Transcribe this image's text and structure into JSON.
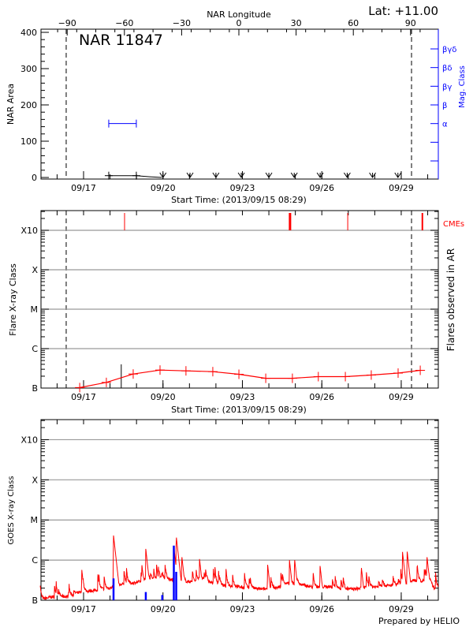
{
  "header": {
    "longitude_axis_label": "NAR Longitude",
    "latitude": "Lat: +11.00",
    "credit": "Prepared by HELIO"
  },
  "colors": {
    "flare": "#ff0000",
    "mag_class": "#0000ff",
    "area": "#000000",
    "grid": "#999999",
    "goes_events": "#0000ff"
  },
  "chart_data": [
    {
      "type": "line",
      "title": "NAR 11847",
      "xlabel": "Start Time: (2013/09/15 08:29)",
      "ylabel": "NAR Area",
      "y2label": "Mag. Class",
      "xlim": [
        "09/15 08:29",
        "09/30 09:40"
      ],
      "xticks": [
        "09/17",
        "09/20",
        "09/23",
        "09/26",
        "09/29"
      ],
      "ylim": [
        0,
        400
      ],
      "yticks": [
        0,
        100,
        200,
        300,
        400
      ],
      "top_axis": {
        "label": "NAR Longitude",
        "ticks": [
          -90,
          -60,
          -30,
          0,
          30,
          60,
          90
        ]
      },
      "limb_crossings": [
        "09/16 08:15",
        "09/29 09:20"
      ],
      "area_series": [
        {
          "t": "09/17 22:50",
          "area": 5
        },
        {
          "t": "09/18 23:50",
          "area": 5
        },
        {
          "t": "09/19 12:00",
          "area": 2
        },
        {
          "t": "09/19 23:00",
          "area": 0
        }
      ],
      "area_upper_limits": [
        "09/20 00:00",
        "09/21 00:30",
        "09/22 00:00",
        "09/22 23:00",
        "09/24 00:00",
        "09/24 23:00",
        "09/25 22:30",
        "09/26 23:00",
        "09/27 22:00",
        "09/28 21:00"
      ],
      "mag_class_levels": [
        "βγδ",
        "βδ",
        "βγ",
        "β",
        "α",
        "",
        ""
      ],
      "mag_class_series": [
        {
          "t": "09/17 22:50",
          "class": "α"
        },
        {
          "t": "09/18 23:50",
          "class": "α"
        }
      ]
    },
    {
      "type": "line",
      "xlabel": "Start Time: (2013/09/15 08:29)",
      "ylabel": "Flare X-ray Class",
      "y2label": "Flares observed in AR",
      "yscale": "log",
      "ylim": [
        1e-07,
        0.00316
      ],
      "yticks": [
        {
          "v": 1e-07,
          "label": "B"
        },
        {
          "v": 1e-06,
          "label": "C"
        },
        {
          "v": 1e-05,
          "label": "M"
        },
        {
          "v": 0.0001,
          "label": "X"
        },
        {
          "v": 0.001,
          "label": "X10"
        }
      ],
      "xticks": [
        "09/17",
        "09/20",
        "09/23",
        "09/26",
        "09/29"
      ],
      "limb_crossings": [
        "09/16 08:15",
        "09/29 09:20"
      ],
      "cme_label": "CMEs",
      "cmes": [
        {
          "t": "09/18 13:10",
          "width": 1
        },
        {
          "t": "09/24 19:10",
          "width": 3
        },
        {
          "t": "09/26 23:30",
          "width": 1
        },
        {
          "t": "09/29 19:10",
          "width": 2
        }
      ],
      "flare_event": {
        "t": "09/18 10:10",
        "flux": 4e-07
      },
      "series": [
        {
          "t": "09/16 20:30",
          "flux": 1.03e-07
        },
        {
          "t": "09/17 20:40",
          "flux": 1.39e-07
        },
        {
          "t": "09/18 21:00",
          "flux": 2.27e-07
        },
        {
          "t": "09/19 21:20",
          "flux": 2.86e-07
        },
        {
          "t": "09/20 20:50",
          "flux": 2.73e-07
        },
        {
          "t": "09/21 21:10",
          "flux": 2.61e-07
        },
        {
          "t": "09/22 20:50",
          "flux": 2.24e-07
        },
        {
          "t": "09/23 21:10",
          "flux": 1.77e-07
        },
        {
          "t": "09/24 21:20",
          "flux": 1.77e-07
        },
        {
          "t": "09/25 20:50",
          "flux": 1.95e-07
        },
        {
          "t": "09/26 21:20",
          "flux": 1.95e-07
        },
        {
          "t": "09/27 20:50",
          "flux": 2.14e-07
        },
        {
          "t": "09/28 21:10",
          "flux": 2.4e-07
        },
        {
          "t": "09/29 17:15",
          "flux": 2.82e-07
        }
      ]
    },
    {
      "type": "line",
      "ylabel": "GOES X-ray Class",
      "yscale": "log",
      "ylim": [
        1e-07,
        0.00316
      ],
      "yticks": [
        {
          "v": 1e-07,
          "label": "B"
        },
        {
          "v": 1e-06,
          "label": "C"
        },
        {
          "v": 1e-05,
          "label": "M"
        },
        {
          "v": 0.0001,
          "label": "X"
        },
        {
          "v": 0.001,
          "label": "X10"
        }
      ],
      "xticks": [
        "09/17",
        "09/20",
        "09/23",
        "09/26",
        "09/29"
      ],
      "baseline": [
        [
          "09/15 08:40",
          1e-07
        ],
        [
          "09/15 18:00",
          1.2e-07
        ],
        [
          "09/16 06:00",
          1.25e-07
        ],
        [
          "09/16 12:00",
          1.2e-07
        ],
        [
          "09/16 18:00",
          1.5e-07
        ],
        [
          "09/17 06:00",
          1.7e-07
        ],
        [
          "09/17 18:00",
          1.9e-07
        ],
        [
          "09/18 00:00",
          2e-07
        ],
        [
          "09/18 06:00",
          2.4e-07
        ],
        [
          "09/18 18:00",
          2.6e-07
        ],
        [
          "09/19 06:00",
          3e-07
        ],
        [
          "09/19 18:00",
          3.5e-07
        ],
        [
          "09/20 06:00",
          3.3e-07
        ],
        [
          "09/20 18:00",
          2.8e-07
        ],
        [
          "09/21 06:00",
          3e-07
        ],
        [
          "09/21 12:00",
          3.6e-07
        ],
        [
          "09/21 18:00",
          2.8e-07
        ],
        [
          "09/22 06:00",
          2.3e-07
        ],
        [
          "09/22 18:00",
          2.2e-07
        ],
        [
          "09/23 06:00",
          2e-07
        ],
        [
          "09/23 18:00",
          1.9e-07
        ],
        [
          "09/24 06:00",
          2e-07
        ],
        [
          "09/24 18:00",
          2.6e-07
        ],
        [
          "09/25 06:00",
          2.4e-07
        ],
        [
          "09/25 18:00",
          2.1e-07
        ],
        [
          "09/26 06:00",
          2.2e-07
        ],
        [
          "09/26 18:00",
          1.9e-07
        ],
        [
          "09/27 06:00",
          1.9e-07
        ],
        [
          "09/27 18:00",
          2.1e-07
        ],
        [
          "09/28 06:00",
          2.2e-07
        ],
        [
          "09/28 18:00",
          2.4e-07
        ],
        [
          "09/29 06:00",
          2.6e-07
        ],
        [
          "09/29 12:00",
          3.2e-07
        ],
        [
          "09/29 18:00",
          2.8e-07
        ],
        [
          "09/30 00:00",
          3.5e-07
        ],
        [
          "09/30 06:00",
          2e-07
        ],
        [
          "09/30 09:40",
          1.9e-07
        ]
      ],
      "peaks": [
        [
          "09/16 22:20",
          6e-07
        ],
        [
          "09/18 03:10",
          4.1e-06
        ],
        [
          "09/19 08:25",
          1.9e-06
        ],
        [
          "09/20 09:50",
          2.2e-06
        ],
        [
          "09/20 12:00",
          4e-06
        ],
        [
          "09/20 17:00",
          1.3e-06
        ],
        [
          "09/21 09:10",
          1.06e-06
        ],
        [
          "09/23 22:50",
          8e-07
        ],
        [
          "09/24 18:40",
          1e-06
        ],
        [
          "09/24 23:15",
          1.1e-06
        ],
        [
          "09/25 22:20",
          7.5e-07
        ],
        [
          "09/27 11:45",
          7e-07
        ],
        [
          "09/29 01:10",
          1.6e-06
        ],
        [
          "09/29 05:20",
          1.7e-06
        ],
        [
          "09/29 23:15",
          1.3e-06
        ]
      ],
      "events": [
        {
          "t": "09/18 03:10",
          "flux": 3.5e-07
        },
        {
          "t": "09/19 08:25",
          "flux": 1.6e-07
        },
        {
          "t": "09/19 23:20",
          "flux": 1.35e-07
        },
        {
          "t": "09/20 09:50",
          "flux": 2.3e-06
        },
        {
          "t": "09/20 12:00",
          "flux": 5.1e-07
        }
      ]
    }
  ]
}
